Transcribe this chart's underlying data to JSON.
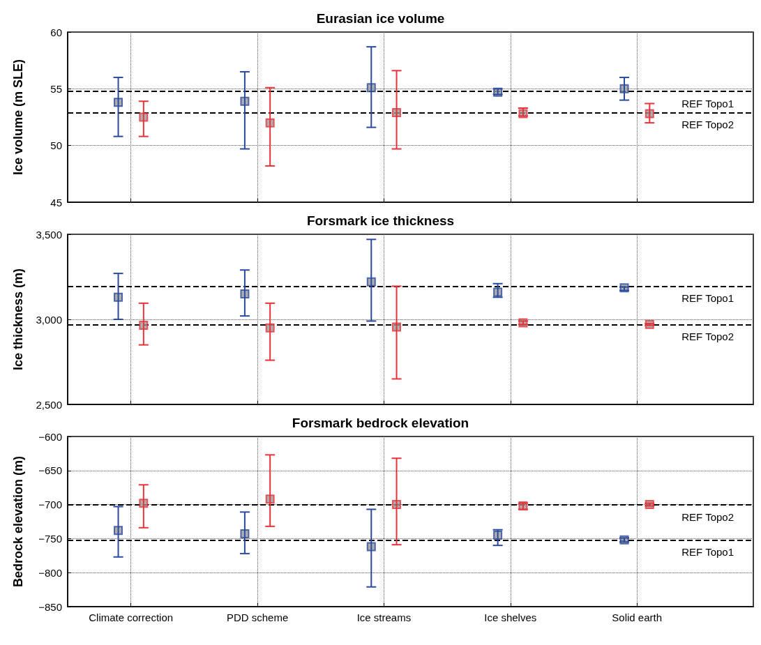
{
  "chart_data": [
    {
      "type": "scatter",
      "title": "Eurasian ice volume",
      "ylabel": "Ice volume (m SLE)",
      "categories": [
        null,
        null,
        null,
        null,
        null
      ],
      "ylim": [
        45,
        60
      ],
      "yticks": [
        45,
        50,
        55,
        60
      ],
      "grid": true,
      "tick_labels": "y",
      "marker": "square",
      "series": [
        {
          "color": "#2a4a9e",
          "values": [
            53.8,
            53.9,
            55.1,
            54.7,
            55.0
          ],
          "errors": [
            [
              50.8,
              56.0
            ],
            [
              49.7,
              56.5
            ],
            [
              51.6,
              58.7
            ],
            [
              54.5,
              55.0
            ],
            [
              54.0,
              56.0
            ]
          ]
        },
        {
          "color": "#e8333a",
          "values": [
            52.5,
            52.0,
            52.9,
            52.8,
            52.8
          ],
          "errors": [
            [
              50.8,
              53.9
            ],
            [
              48.2,
              55.1
            ],
            [
              49.7,
              56.6
            ],
            [
              52.6,
              53.3
            ],
            [
              52.0,
              53.7
            ]
          ]
        }
      ],
      "ref_lines": [
        {
          "axis": "y",
          "value": 54.8,
          "label": "REF Topo1",
          "color": "#000000",
          "line_style": "dashed"
        },
        {
          "axis": "y",
          "value": 52.9,
          "label": "REF Topo2",
          "color": "#000000",
          "line_style": "dashed"
        }
      ]
    },
    {
      "type": "scatter",
      "title": "Forsmark ice thickness",
      "ylabel": "Ice thickness (m)",
      "categories": [
        null,
        null,
        null,
        null,
        null
      ],
      "ylim": [
        2500,
        3500
      ],
      "yticks": [
        {
          "value": 2500,
          "label": "2,500"
        },
        {
          "value": 3000,
          "label": "3,000"
        },
        {
          "value": 3500,
          "label": "3,500"
        }
      ],
      "grid": true,
      "tick_labels": "y",
      "marker": "square",
      "series": [
        {
          "color": "#2a4a9e",
          "values": [
            3130,
            3150,
            3220,
            3160,
            3185
          ],
          "errors": [
            [
              3000,
              3270
            ],
            [
              3020,
              3290
            ],
            [
              2990,
              3470
            ],
            [
              3130,
              3210
            ],
            [
              3170,
              3190
            ]
          ]
        },
        {
          "color": "#e8333a",
          "values": [
            2965,
            2950,
            2955,
            2980,
            2970
          ],
          "errors": [
            [
              2850,
              3095
            ],
            [
              2760,
              3095
            ],
            [
              2650,
              3195
            ],
            [
              2970,
              2990
            ],
            [
              2965,
              2975
            ]
          ]
        }
      ],
      "ref_lines": [
        {
          "axis": "y",
          "value": 3195,
          "label": "REF Topo1",
          "color": "#000000",
          "line_style": "dashed"
        },
        {
          "axis": "y",
          "value": 2970,
          "label": "REF Topo2",
          "color": "#000000",
          "line_style": "dashed"
        }
      ]
    },
    {
      "type": "scatter",
      "title": "Forsmark bedrock elevation",
      "ylabel": "Bedrock elevation (m)",
      "categories": [
        "Climate correction",
        "PDD scheme",
        "Ice streams",
        "Ice shelves",
        "Solid earth"
      ],
      "ylim": [
        -850,
        -600
      ],
      "yticks": [
        {
          "value": -850,
          "label": "−850"
        },
        {
          "value": -800,
          "label": "−800"
        },
        {
          "value": -750,
          "label": "−750"
        },
        {
          "value": -700,
          "label": "−700"
        },
        {
          "value": -650,
          "label": "−650"
        },
        {
          "value": -600,
          "label": "−600"
        }
      ],
      "grid": true,
      "marker": "square",
      "series": [
        {
          "color": "#2a4a9e",
          "values": [
            -738,
            -743,
            -762,
            -745,
            -752
          ],
          "errors": [
            [
              -777,
              -703
            ],
            [
              -772,
              -711
            ],
            [
              -821,
              -707
            ],
            [
              -760,
              -737
            ],
            [
              -755,
              -749
            ]
          ]
        },
        {
          "color": "#e8333a",
          "values": [
            -698,
            -692,
            -700,
            -702,
            -700
          ],
          "errors": [
            [
              -734,
              -671
            ],
            [
              -732,
              -627
            ],
            [
              -759,
              -632
            ],
            [
              -707,
              -698
            ],
            [
              -702,
              -698
            ]
          ]
        }
      ],
      "ref_lines": [
        {
          "axis": "y",
          "value": -700,
          "label": "REF Topo2",
          "color": "#000000",
          "line_style": "dashed"
        },
        {
          "axis": "y",
          "value": -752,
          "label": "REF Topo1",
          "color": "#000000",
          "line_style": "dashed"
        }
      ]
    }
  ]
}
